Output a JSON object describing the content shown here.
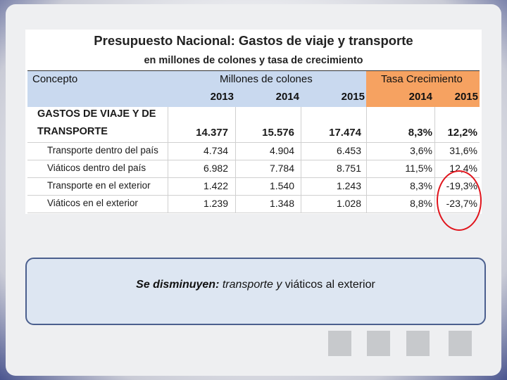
{
  "table": {
    "title": "Presupuesto Nacional: Gastos de viaje y transporte",
    "subtitle": "en millones de colones y tasa de crecimiento",
    "header": {
      "concept": "Concepto",
      "millions": "Millones de colones",
      "growth": "Tasa Crecimiento",
      "years_millions": [
        "2013",
        "2014",
        "2015"
      ],
      "years_growth": [
        "2014",
        "2015"
      ]
    },
    "total_row": {
      "label_line1": "GASTOS DE VIAJE Y DE",
      "label_line2": "TRANSPORTE",
      "values": [
        "14.377",
        "15.576",
        "17.474",
        "8,3%",
        "12,2%"
      ]
    },
    "rows": [
      {
        "label": "Transporte dentro del país",
        "values": [
          "4.734",
          "4.904",
          "6.453",
          "3,6%",
          "31,6%"
        ]
      },
      {
        "label": "Viáticos dentro del país",
        "values": [
          "6.982",
          "7.784",
          "8.751",
          "11,5%",
          "12,4%"
        ]
      },
      {
        "label": "Transporte en el exterior",
        "values": [
          "1.422",
          "1.540",
          "1.243",
          "8,3%",
          "-19,3%"
        ]
      },
      {
        "label": "Viáticos en el exterior",
        "values": [
          "1.239",
          "1.348",
          "1.028",
          "8,8%",
          "-23,7%"
        ]
      }
    ]
  },
  "note": {
    "part1": "Se disminuyen:",
    "part2": " transporte y ",
    "part3": " viáticos al exterior"
  },
  "colors": {
    "header_blue": "#c9d9ef",
    "header_orange": "#f6a261",
    "highlight_circle": "#e0141c",
    "note_bg": "#dde6f2"
  }
}
